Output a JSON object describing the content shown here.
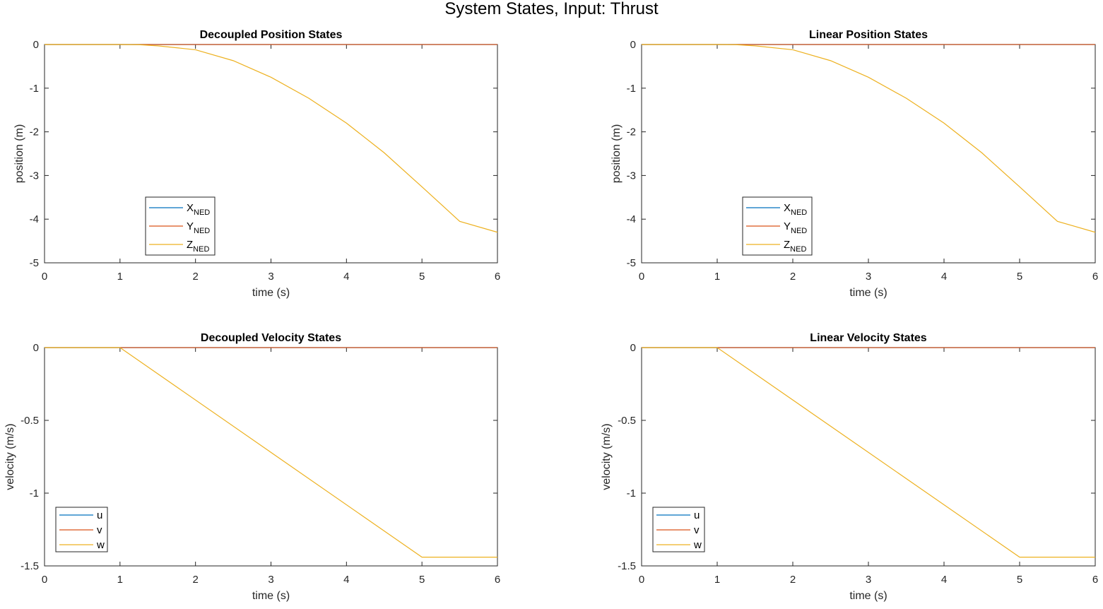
{
  "figure": {
    "title": "System States, Input: Thrust"
  },
  "colors": {
    "series1": "#0072BD",
    "series2": "#D95319",
    "series3": "#EDB120",
    "axis": "#262626"
  },
  "chart_data": [
    {
      "type": "line",
      "title": "Decoupled Position States",
      "xlabel": "time (s)",
      "ylabel": "position (m)",
      "xlim": [
        0,
        6
      ],
      "ylim": [
        -5,
        0
      ],
      "xticks": [
        0,
        1,
        2,
        3,
        4,
        5,
        6
      ],
      "yticks": [
        0,
        -1,
        -2,
        -3,
        -4,
        -5
      ],
      "legend": {
        "placement": "lower-left",
        "entries": [
          {
            "main": "X",
            "sub": "NED"
          },
          {
            "main": "Y",
            "sub": "NED"
          },
          {
            "main": "Z",
            "sub": "NED"
          }
        ]
      },
      "series": [
        {
          "name": "XNED",
          "x": [
            0,
            6
          ],
          "y": [
            0,
            0
          ]
        },
        {
          "name": "YNED",
          "x": [
            0,
            6
          ],
          "y": [
            0,
            0
          ]
        },
        {
          "name": "ZNED",
          "x": [
            0,
            1,
            1.25,
            1.5,
            2,
            2.5,
            3,
            3.5,
            4,
            4.5,
            5,
            5.5,
            6
          ],
          "y": [
            0,
            0,
            -0.004,
            -0.03,
            -0.12,
            -0.37,
            -0.75,
            -1.23,
            -1.8,
            -2.48,
            -3.26,
            -4.05,
            -4.3
          ]
        }
      ]
    },
    {
      "type": "line",
      "title": "Linear Position States",
      "xlabel": "time (s)",
      "ylabel": "position (m)",
      "xlim": [
        0,
        6
      ],
      "ylim": [
        -5,
        0
      ],
      "xticks": [
        0,
        1,
        2,
        3,
        4,
        5,
        6
      ],
      "yticks": [
        0,
        -1,
        -2,
        -3,
        -4,
        -5
      ],
      "legend": {
        "placement": "lower-left",
        "entries": [
          {
            "main": "X",
            "sub": "NED"
          },
          {
            "main": "Y",
            "sub": "NED"
          },
          {
            "main": "Z",
            "sub": "NED"
          }
        ]
      },
      "series": [
        {
          "name": "XNED",
          "x": [
            0,
            6
          ],
          "y": [
            0,
            0
          ]
        },
        {
          "name": "YNED",
          "x": [
            0,
            6
          ],
          "y": [
            0,
            0
          ]
        },
        {
          "name": "ZNED",
          "x": [
            0,
            1,
            1.25,
            1.5,
            2,
            2.5,
            3,
            3.5,
            4,
            4.5,
            5,
            5.5,
            6
          ],
          "y": [
            0,
            0,
            -0.004,
            -0.03,
            -0.12,
            -0.37,
            -0.75,
            -1.23,
            -1.8,
            -2.48,
            -3.26,
            -4.05,
            -4.3
          ]
        }
      ]
    },
    {
      "type": "line",
      "title": "Decoupled Velocity States",
      "xlabel": "time (s)",
      "ylabel": "velocity (m/s)",
      "xlim": [
        0,
        6
      ],
      "ylim": [
        -1.5,
        0
      ],
      "xticks": [
        0,
        1,
        2,
        3,
        4,
        5,
        6
      ],
      "yticks": [
        0,
        -0.5,
        -1,
        -1.5
      ],
      "legend": {
        "placement": "lower-left",
        "entries": [
          {
            "main": "u",
            "sub": ""
          },
          {
            "main": "v",
            "sub": ""
          },
          {
            "main": "w",
            "sub": ""
          }
        ]
      },
      "series": [
        {
          "name": "u",
          "x": [
            0,
            6
          ],
          "y": [
            0,
            0
          ]
        },
        {
          "name": "v",
          "x": [
            0,
            6
          ],
          "y": [
            0,
            0
          ]
        },
        {
          "name": "w",
          "x": [
            0,
            1,
            5,
            6
          ],
          "y": [
            0,
            0,
            -1.44,
            -1.44
          ]
        }
      ]
    },
    {
      "type": "line",
      "title": "Linear Velocity States",
      "xlabel": "time (s)",
      "ylabel": "velocity (m/s)",
      "xlim": [
        0,
        6
      ],
      "ylim": [
        -1.5,
        0
      ],
      "xticks": [
        0,
        1,
        2,
        3,
        4,
        5,
        6
      ],
      "yticks": [
        0,
        -0.5,
        -1,
        -1.5
      ],
      "legend": {
        "placement": "lower-left",
        "entries": [
          {
            "main": "u",
            "sub": ""
          },
          {
            "main": "v",
            "sub": ""
          },
          {
            "main": "w",
            "sub": ""
          }
        ]
      },
      "series": [
        {
          "name": "u",
          "x": [
            0,
            6
          ],
          "y": [
            0,
            0
          ]
        },
        {
          "name": "v",
          "x": [
            0,
            6
          ],
          "y": [
            0,
            0
          ]
        },
        {
          "name": "w",
          "x": [
            0,
            1,
            5,
            6
          ],
          "y": [
            0,
            0,
            -1.44,
            -1.44
          ]
        }
      ]
    }
  ]
}
